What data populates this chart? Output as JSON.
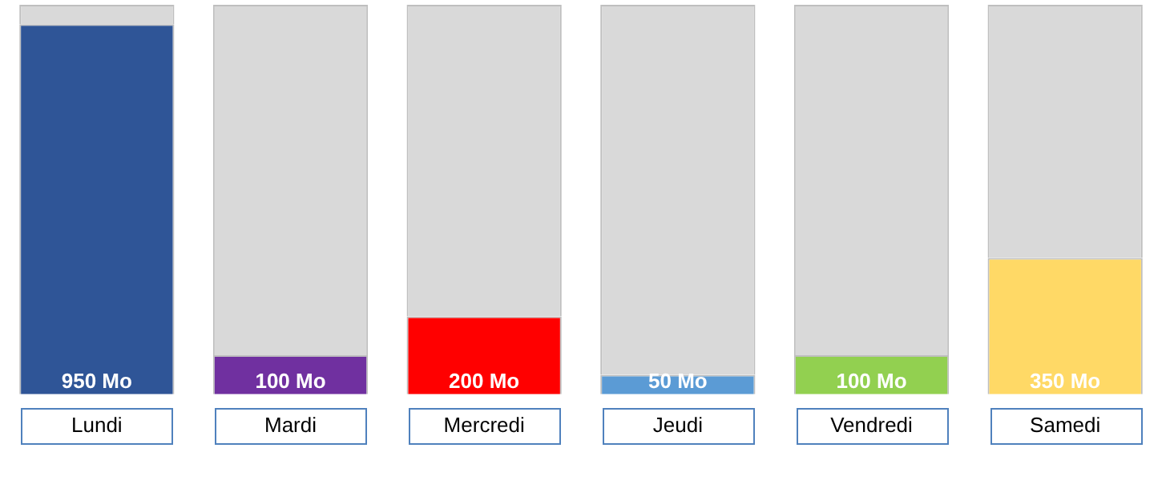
{
  "chart_data": {
    "type": "bar",
    "stacked": true,
    "categories": [
      "Lundi",
      "Mardi",
      "Mercredi",
      "Jeudi",
      "Vendredi",
      "Samedi"
    ],
    "ylim": [
      0,
      1000
    ],
    "tick_labels": "x",
    "grid": false,
    "legend": false,
    "series": [
      {
        "colors": [
          "#2f5597",
          "#7030a0",
          "#ff0000",
          "#5b9bd5",
          "#92d050",
          "#ffd966"
        ],
        "values": [
          950,
          100,
          200,
          50,
          100,
          350
        ],
        "value_labels": [
          "950 Mo",
          "100 Mo",
          "200 Mo",
          "50 Mo",
          "100 Mo",
          "350 Mo"
        ]
      },
      {
        "color": "#d9d9d9",
        "values": [
          50,
          900,
          800,
          950,
          900,
          650
        ]
      }
    ]
  }
}
